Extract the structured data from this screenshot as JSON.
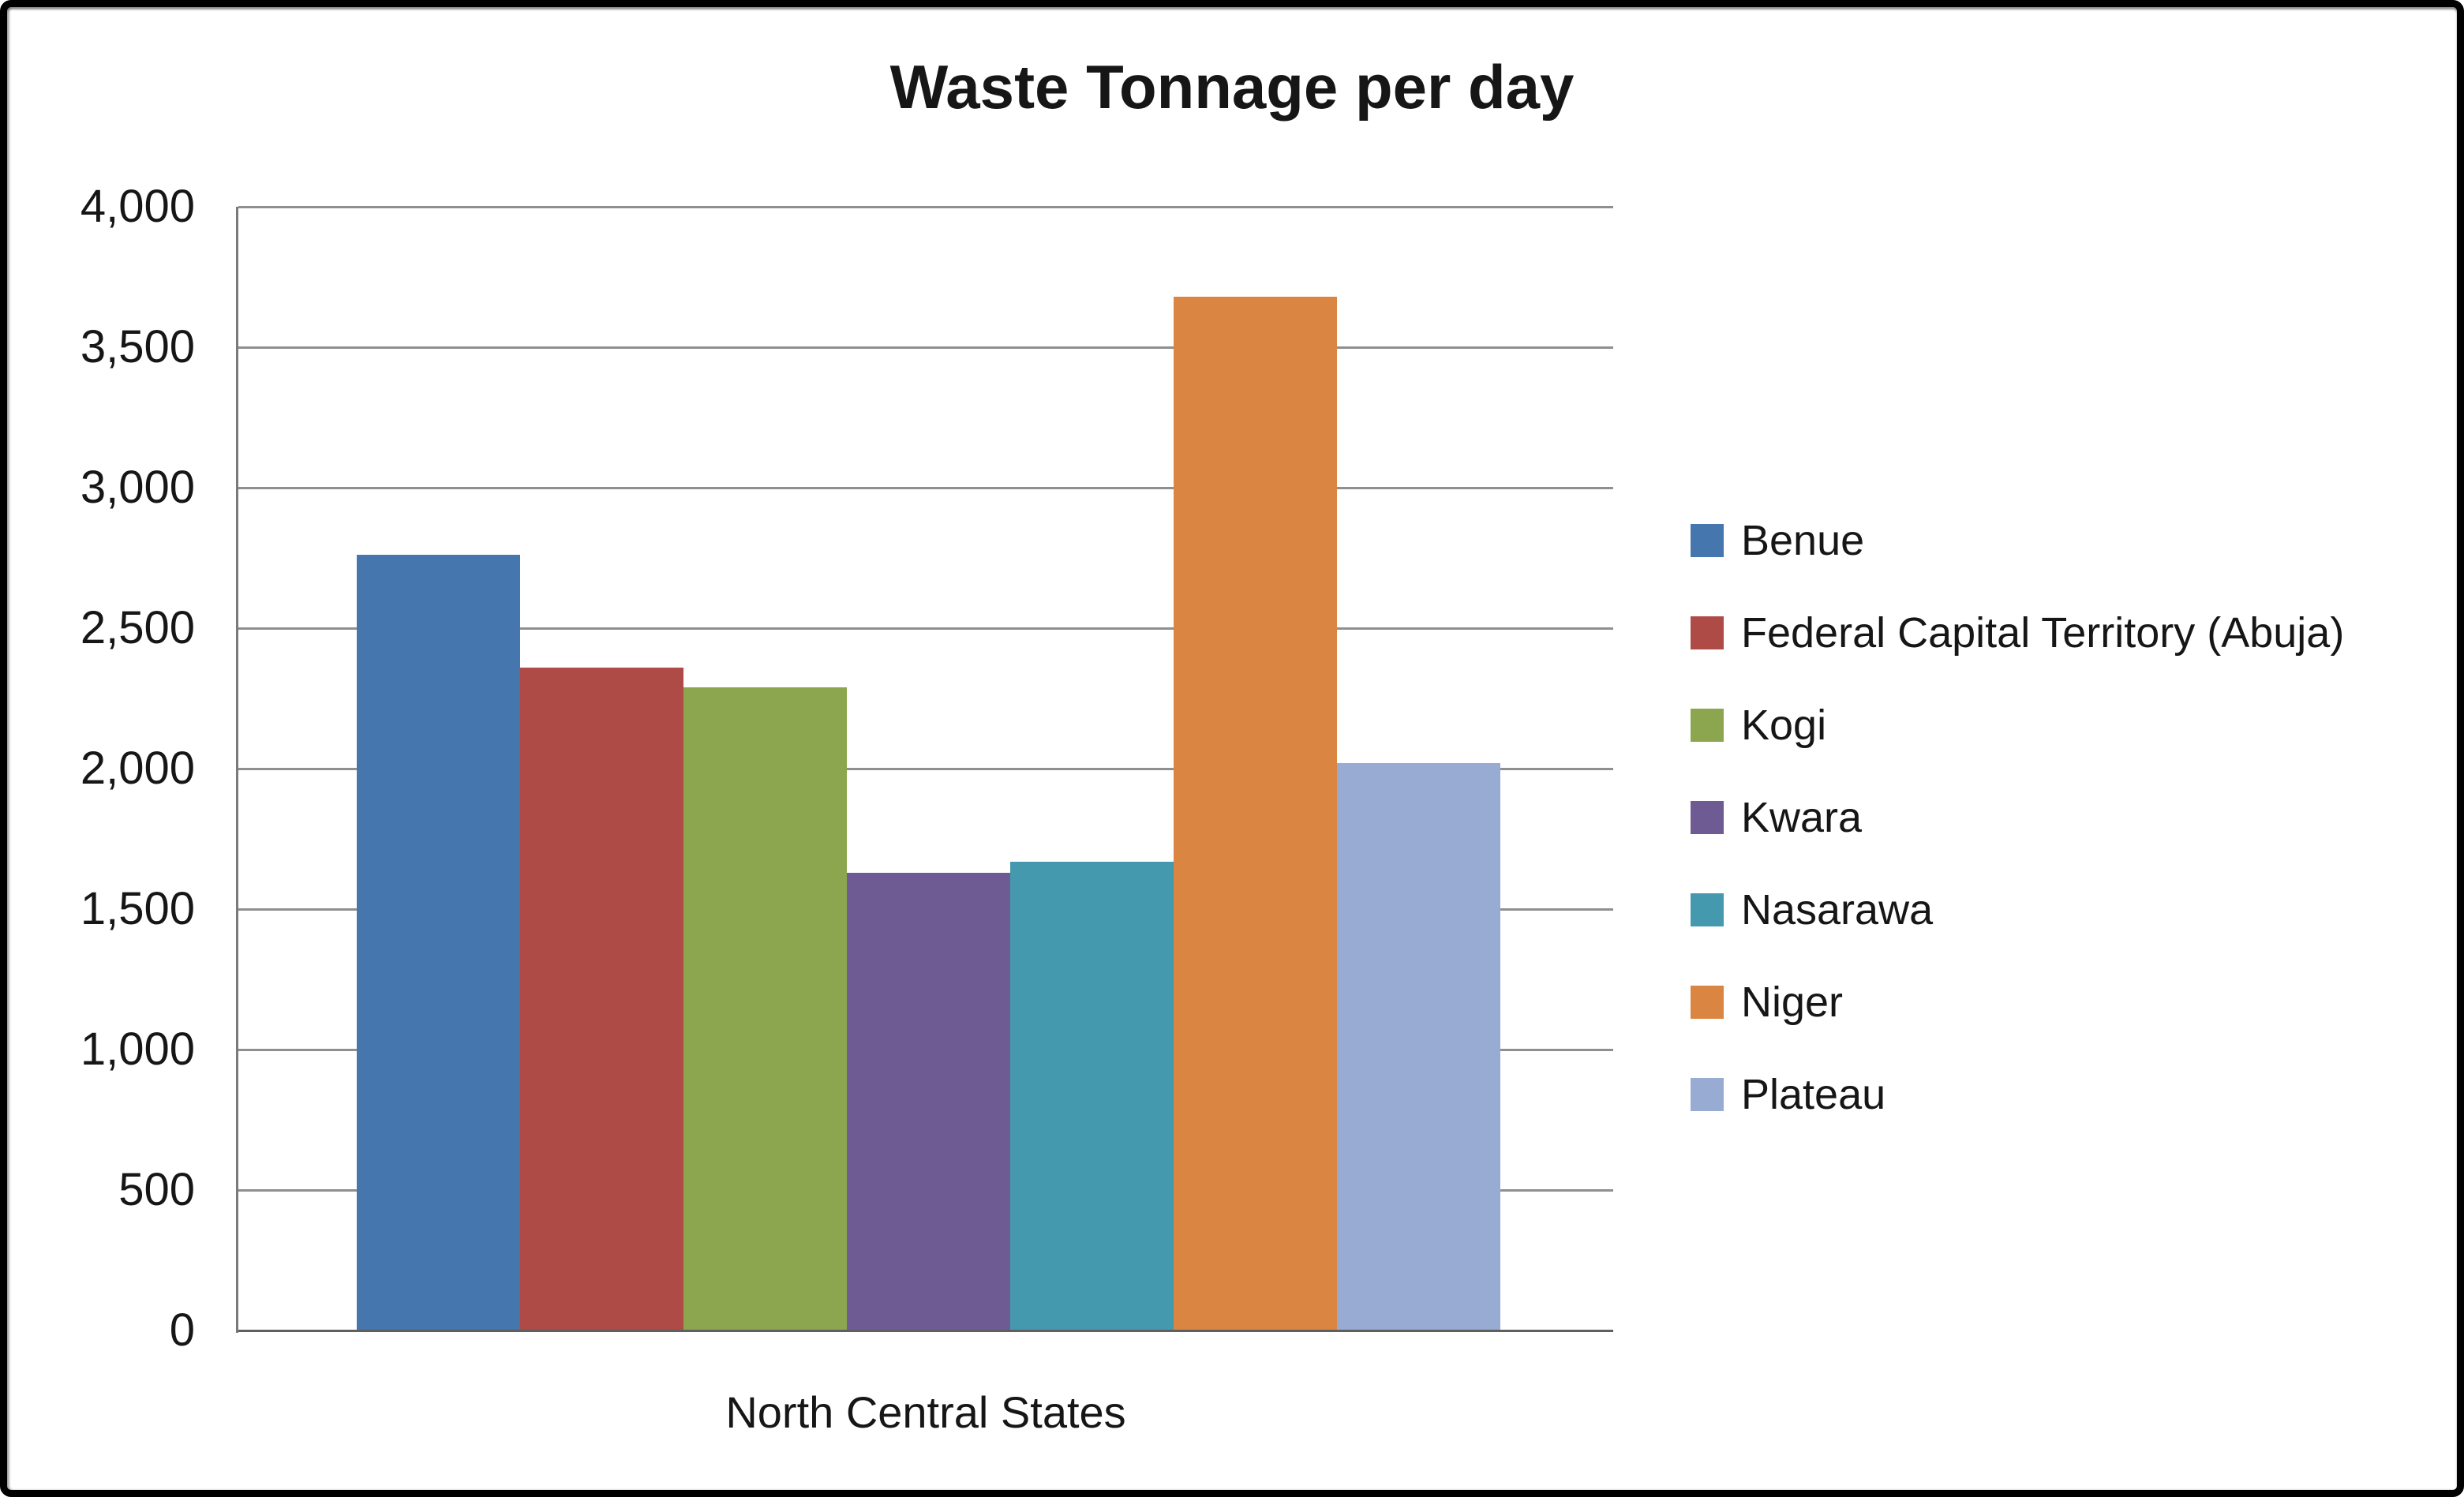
{
  "chart_data": {
    "type": "bar",
    "title": "Waste Tonnage per day",
    "xlabel": "North Central States",
    "ylabel": "",
    "categories": [
      "North Central States"
    ],
    "series": [
      {
        "name": "Benue",
        "values": [
          2760
        ],
        "color": "#4576AD"
      },
      {
        "name": "Federal Capital Territory (Abuja)",
        "values": [
          2360
        ],
        "color": "#AF4B47"
      },
      {
        "name": "Kogi",
        "values": [
          2290
        ],
        "color": "#8CA650"
      },
      {
        "name": "Kwara",
        "values": [
          1630
        ],
        "color": "#6F5B93"
      },
      {
        "name": "Nasarawa",
        "values": [
          1670
        ],
        "color": "#4599AF"
      },
      {
        "name": "Niger",
        "values": [
          3680
        ],
        "color": "#DB8542"
      },
      {
        "name": "Plateau",
        "values": [
          2020
        ],
        "color": "#98ABD2"
      }
    ],
    "ylim": [
      0,
      4000
    ],
    "ytick_interval": 500,
    "ytick_labels": [
      "0",
      "500",
      "1,000",
      "1,500",
      "2,000",
      "2,500",
      "3,000",
      "3,500",
      "4,000"
    ],
    "grid": true,
    "legend_position": "right",
    "gridline_color": "#8f8f8f",
    "axis_color": "#5f5f5f",
    "text_color": "#161616"
  }
}
